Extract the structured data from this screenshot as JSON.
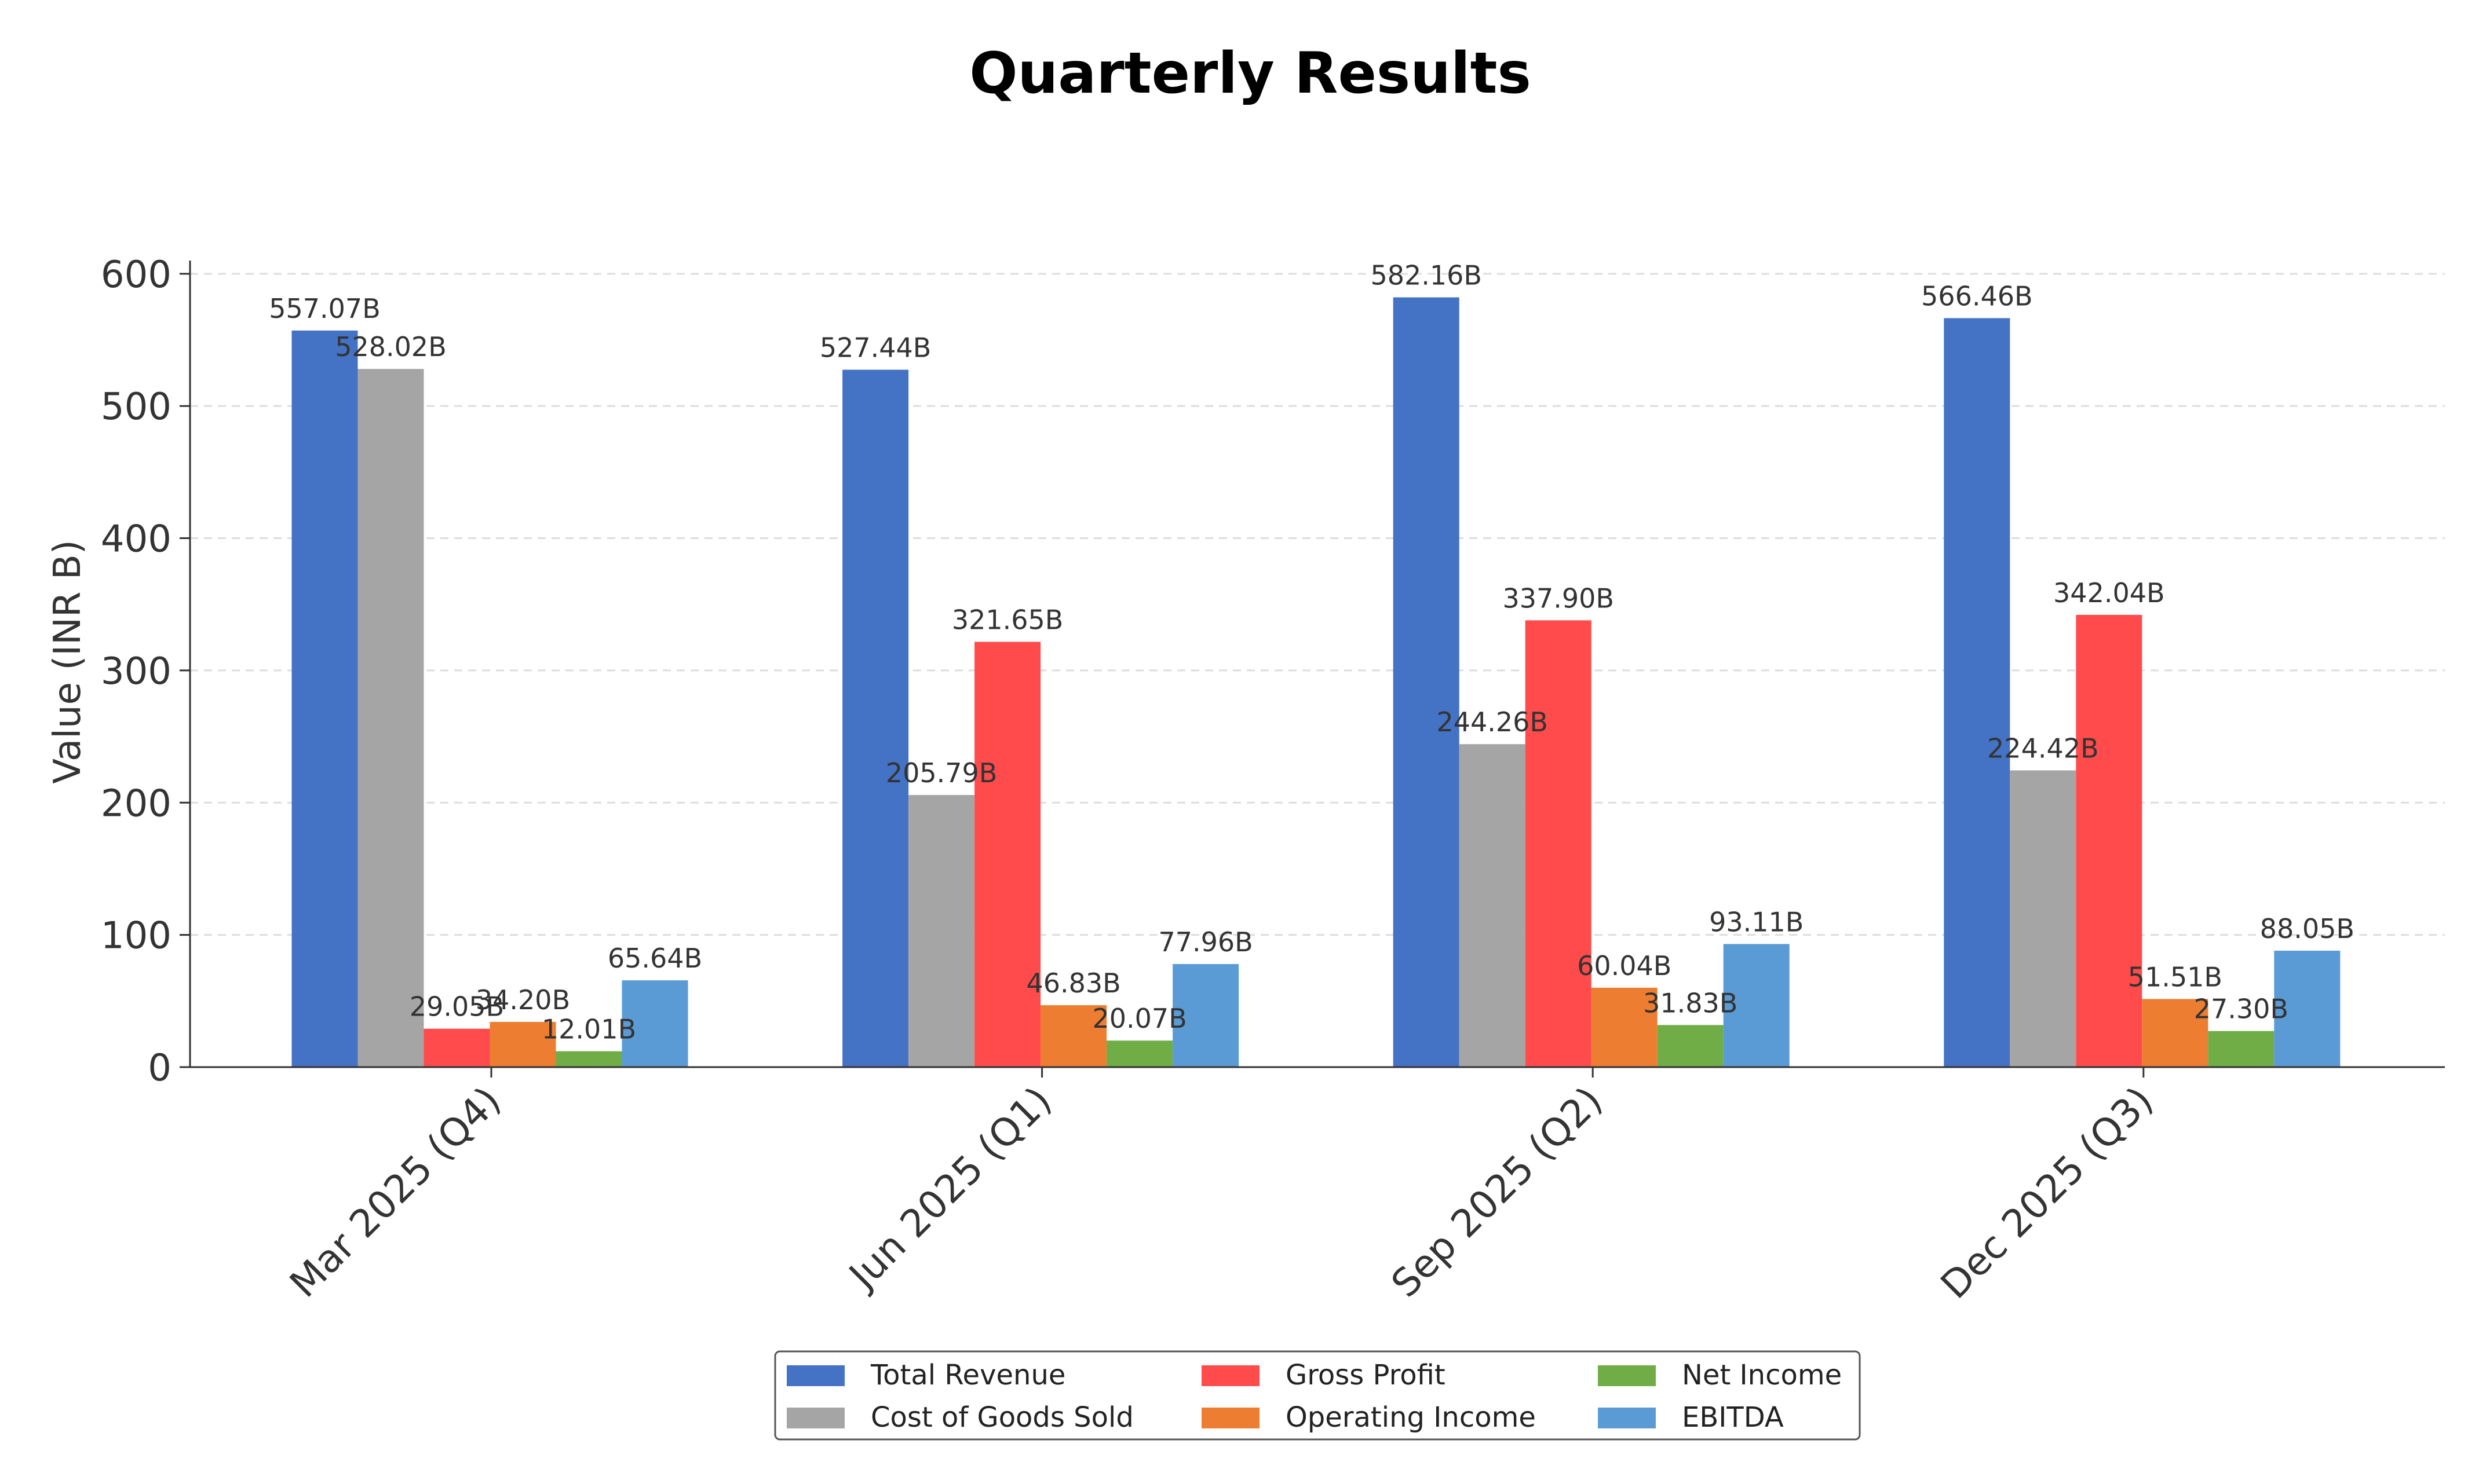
{
  "chart_data": {
    "type": "bar",
    "title": "Quarterly Results",
    "xlabel": "",
    "ylabel": "Value (INR B)",
    "ylim": [
      0,
      610
    ],
    "yticks": [
      0,
      100,
      200,
      300,
      400,
      500,
      600
    ],
    "grid": "y-dashed",
    "legend_placement": "bottom-center",
    "categories": [
      "Mar 2025 (Q4)",
      "Jun 2025 (Q1)",
      "Sep 2025 (Q2)",
      "Dec 2025 (Q3)"
    ],
    "series": [
      {
        "name": "Total Revenue",
        "color": "#4472c4",
        "values": [
          557.07,
          527.44,
          582.16,
          566.46
        ],
        "labels": [
          "557.07B",
          "527.44B",
          "582.16B",
          "566.46B"
        ]
      },
      {
        "name": "Cost of Goods Sold",
        "color": "#a5a5a5",
        "values": [
          528.02,
          205.79,
          244.26,
          224.42
        ],
        "labels": [
          "528.02B",
          "205.79B",
          "244.26B",
          "224.42B"
        ]
      },
      {
        "name": "Gross Profit",
        "color": "#ff4b4b",
        "values": [
          29.05,
          321.65,
          337.9,
          342.04
        ],
        "labels": [
          "29.05B",
          "321.65B",
          "337.90B",
          "342.04B"
        ]
      },
      {
        "name": "Operating Income",
        "color": "#ed7d31",
        "values": [
          34.2,
          46.83,
          60.04,
          51.51
        ],
        "labels": [
          "34.20B",
          "46.83B",
          "60.04B",
          "51.51B"
        ]
      },
      {
        "name": "Net Income",
        "color": "#70ad47",
        "values": [
          12.01,
          20.07,
          31.83,
          27.3
        ],
        "labels": [
          "12.01B",
          "20.07B",
          "31.83B",
          "27.30B"
        ]
      },
      {
        "name": "EBITDA",
        "color": "#5b9bd5",
        "values": [
          65.64,
          77.96,
          93.11,
          88.05
        ],
        "labels": [
          "65.64B",
          "77.96B",
          "93.11B",
          "88.05B"
        ]
      }
    ]
  }
}
